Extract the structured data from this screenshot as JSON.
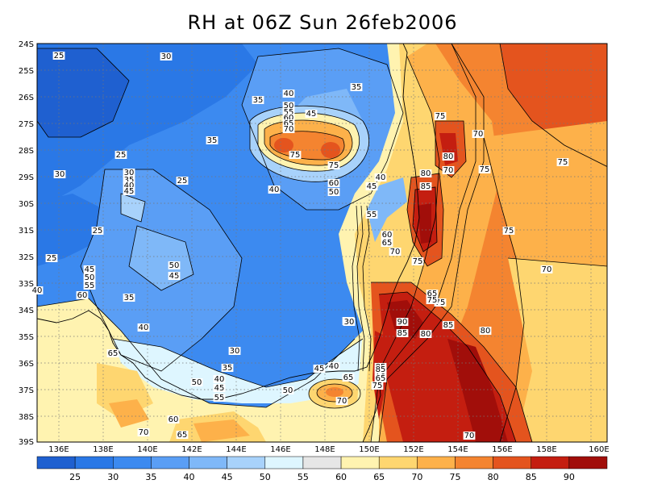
{
  "title": "RH at 06Z Sun 26feb2006",
  "lat_labels": [
    "24S",
    "25S",
    "26S",
    "27S",
    "28S",
    "29S",
    "30S",
    "31S",
    "32S",
    "33S",
    "34S",
    "35S",
    "36S",
    "37S",
    "38S",
    "39S"
  ],
  "lon_labels": [
    "136E",
    "138E",
    "140E",
    "142E",
    "144E",
    "146E",
    "148E",
    "150E",
    "152E",
    "154E",
    "156E",
    "158E",
    "160E"
  ],
  "colorbar": {
    "labels": [
      "25",
      "30",
      "35",
      "40",
      "45",
      "50",
      "55",
      "60",
      "65",
      "70",
      "75",
      "80",
      "85",
      "90"
    ],
    "colors": [
      "#1f60d0",
      "#2a78e6",
      "#3c8af0",
      "#5a9ef5",
      "#7fb8f8",
      "#a8d2fb",
      "#def6ff",
      "#e6e6e6",
      "#fff3b0",
      "#fed670",
      "#fdb14a",
      "#f48430",
      "#e4541e",
      "#c41e10",
      "#a10e0a"
    ]
  },
  "contour_labels": [
    {
      "text": "25"
    },
    {
      "text": "30"
    },
    {
      "text": "35"
    },
    {
      "text": "35"
    },
    {
      "text": "40"
    },
    {
      "text": "50"
    },
    {
      "text": "55"
    },
    {
      "text": "60"
    },
    {
      "text": "65"
    },
    {
      "text": "70"
    },
    {
      "text": "45"
    },
    {
      "text": "75"
    },
    {
      "text": "75"
    },
    {
      "text": "60"
    },
    {
      "text": "50"
    },
    {
      "text": "40"
    },
    {
      "text": "35"
    },
    {
      "text": "25"
    },
    {
      "text": "25"
    },
    {
      "text": "30"
    },
    {
      "text": "25"
    },
    {
      "text": "30"
    },
    {
      "text": "35"
    },
    {
      "text": "40"
    },
    {
      "text": "45"
    },
    {
      "text": "25"
    },
    {
      "text": "40"
    },
    {
      "text": "45"
    },
    {
      "text": "50"
    },
    {
      "text": "55"
    },
    {
      "text": "60"
    },
    {
      "text": "35"
    },
    {
      "text": "50"
    },
    {
      "text": "45"
    },
    {
      "text": "40"
    },
    {
      "text": "30"
    },
    {
      "text": "35"
    },
    {
      "text": "65"
    },
    {
      "text": "40"
    },
    {
      "text": "45"
    },
    {
      "text": "55"
    },
    {
      "text": "50"
    },
    {
      "text": "70"
    },
    {
      "text": "60"
    },
    {
      "text": "65"
    },
    {
      "text": "50"
    },
    {
      "text": "35"
    },
    {
      "text": "40"
    },
    {
      "text": "45"
    },
    {
      "text": "65"
    },
    {
      "text": "70"
    },
    {
      "text": "40"
    },
    {
      "text": "45"
    },
    {
      "text": "55"
    },
    {
      "text": "60"
    },
    {
      "text": "65"
    },
    {
      "text": "70"
    },
    {
      "text": "75"
    },
    {
      "text": "80"
    },
    {
      "text": "85"
    },
    {
      "text": "75"
    },
    {
      "text": "80"
    },
    {
      "text": "70"
    },
    {
      "text": "75"
    },
    {
      "text": "75"
    },
    {
      "text": "70"
    },
    {
      "text": "85"
    },
    {
      "text": "90"
    },
    {
      "text": "85"
    },
    {
      "text": "80"
    },
    {
      "text": "80"
    },
    {
      "text": "85"
    },
    {
      "text": "75"
    },
    {
      "text": "65"
    },
    {
      "text": "75"
    },
    {
      "text": "70"
    },
    {
      "text": "75"
    },
    {
      "text": "30"
    },
    {
      "text": "70"
    },
    {
      "text": "65"
    },
    {
      "text": "85"
    },
    {
      "text": "75"
    },
    {
      "text": "70"
    }
  ]
}
